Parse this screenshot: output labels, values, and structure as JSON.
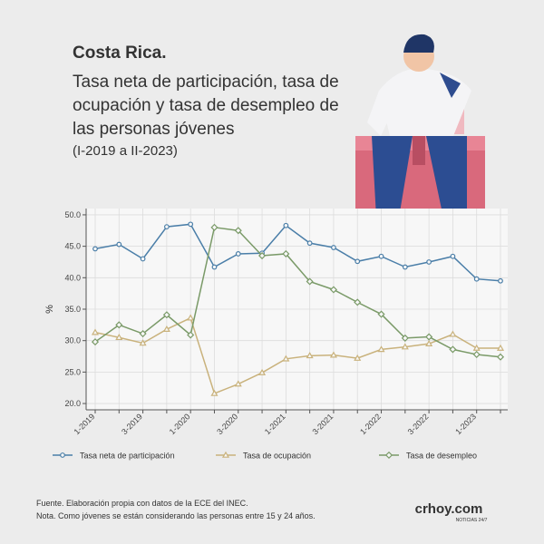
{
  "header": {
    "title": "Costa Rica.",
    "subtitle": [
      "Tasa neta de participación, tasa de",
      "ocupación y tasa de desempleo de",
      "las personas jóvenes"
    ],
    "period": "(I-2019 a II-2023)"
  },
  "chart_data": {
    "type": "line",
    "ylabel": "%",
    "categories": [
      "1-2019",
      null,
      "3-2019",
      null,
      "1-2020",
      null,
      "3-2020",
      null,
      "1-2021",
      null,
      "3-2021",
      null,
      "1-2022",
      null,
      "3-2022",
      null,
      "1-2023",
      null
    ],
    "series": [
      {
        "name": "Tasa neta de participación",
        "color": "#4a7ea8",
        "marker": "circle",
        "values": [
          44.6,
          45.3,
          43.0,
          48.1,
          48.5,
          41.7,
          43.8,
          43.9,
          48.3,
          45.5,
          44.8,
          42.6,
          43.4,
          41.7,
          42.5,
          43.4,
          39.8,
          39.5
        ]
      },
      {
        "name": "Tasa de ocupación",
        "color": "#c9b27c",
        "marker": "triangle",
        "values": [
          31.3,
          30.5,
          29.6,
          31.8,
          33.6,
          21.6,
          23.1,
          24.9,
          27.1,
          27.6,
          27.7,
          27.2,
          28.6,
          29.0,
          29.5,
          31.0,
          28.8,
          28.8
        ]
      },
      {
        "name": "Tasa de desempleo",
        "color": "#7a9a68",
        "marker": "diamond",
        "values": [
          29.8,
          32.5,
          31.1,
          34.1,
          30.9,
          48.0,
          47.5,
          43.5,
          43.8,
          39.4,
          38.1,
          36.1,
          34.2,
          30.4,
          30.6,
          28.6,
          27.8,
          27.4
        ]
      }
    ],
    "ylim": [
      19,
      51
    ],
    "yticks": [
      {
        "value": 20,
        "label": "20.0"
      },
      {
        "value": 25,
        "label": "25.0"
      },
      {
        "value": 30,
        "label": "30.0"
      },
      {
        "value": 35,
        "label": "35.0"
      },
      {
        "value": 40,
        "label": "40.0"
      },
      {
        "value": 45,
        "label": "45.0"
      },
      {
        "value": 50,
        "label": "50.0"
      }
    ],
    "grid": true,
    "legend": "bottom"
  },
  "footer": {
    "notes": [
      "Fuente. Elaboración propia con datos de la ECE del INEC.",
      "Nota. Como jóvenes se están considerando las personas entre 15 y 24 años."
    ],
    "logo": "crhoy.com",
    "logo_tag": "NOTICIAS 24/7"
  }
}
